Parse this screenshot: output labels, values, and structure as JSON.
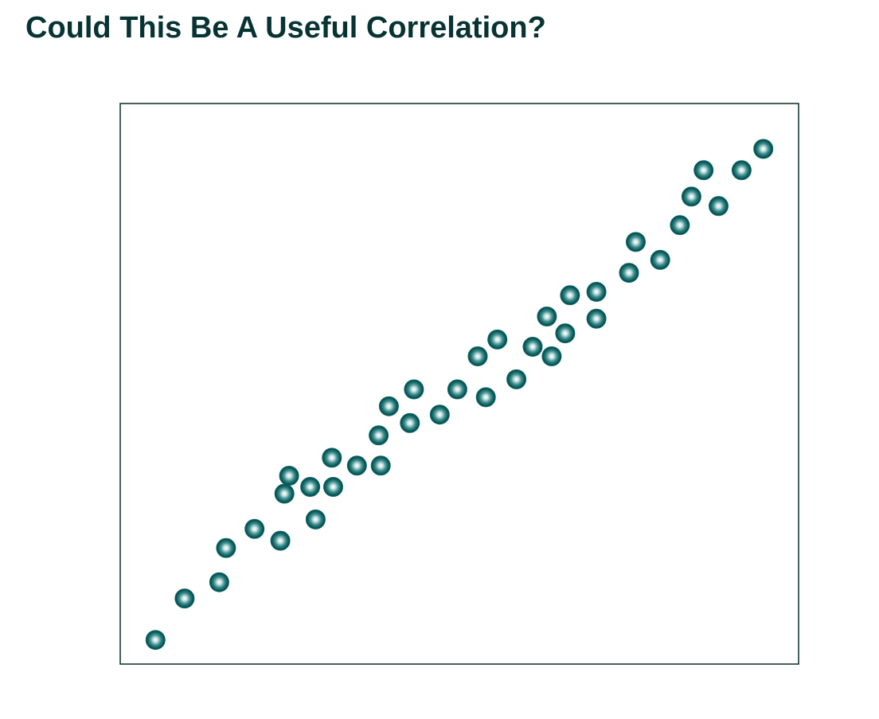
{
  "slide": {
    "title": "Could This Be A Useful Correlation?"
  },
  "chart_data": {
    "type": "scatter",
    "title": "",
    "xlabel": "",
    "ylabel": "",
    "xlim": [
      0,
      100
    ],
    "ylim": [
      0,
      100
    ],
    "grid": false,
    "legend": "none",
    "axes_ticks": "none",
    "marker_color": "#0e6b6b",
    "frame_color": "#0a2a2a",
    "points": [
      {
        "x": 5.2,
        "y": 4.3
      },
      {
        "x": 9.5,
        "y": 11.7
      },
      {
        "x": 14.6,
        "y": 14.6
      },
      {
        "x": 15.6,
        "y": 20.7
      },
      {
        "x": 19.8,
        "y": 24.1
      },
      {
        "x": 23.6,
        "y": 22.0
      },
      {
        "x": 24.2,
        "y": 30.4
      },
      {
        "x": 24.9,
        "y": 33.6
      },
      {
        "x": 28.0,
        "y": 31.6
      },
      {
        "x": 28.8,
        "y": 25.8
      },
      {
        "x": 31.4,
        "y": 31.6
      },
      {
        "x": 31.2,
        "y": 36.8
      },
      {
        "x": 34.9,
        "y": 35.4
      },
      {
        "x": 38.4,
        "y": 35.4
      },
      {
        "x": 38.1,
        "y": 40.8
      },
      {
        "x": 39.6,
        "y": 46.0
      },
      {
        "x": 42.7,
        "y": 43.0
      },
      {
        "x": 43.3,
        "y": 49.0
      },
      {
        "x": 47.1,
        "y": 44.5
      },
      {
        "x": 49.7,
        "y": 49.0
      },
      {
        "x": 53.9,
        "y": 47.6
      },
      {
        "x": 52.7,
        "y": 54.9
      },
      {
        "x": 55.6,
        "y": 57.9
      },
      {
        "x": 58.4,
        "y": 50.8
      },
      {
        "x": 60.8,
        "y": 56.6
      },
      {
        "x": 63.6,
        "y": 54.9
      },
      {
        "x": 62.9,
        "y": 62.0
      },
      {
        "x": 65.6,
        "y": 59.0
      },
      {
        "x": 66.3,
        "y": 65.8
      },
      {
        "x": 70.2,
        "y": 61.6
      },
      {
        "x": 70.2,
        "y": 66.4
      },
      {
        "x": 75.0,
        "y": 69.8
      },
      {
        "x": 76.0,
        "y": 75.3
      },
      {
        "x": 79.6,
        "y": 72.1
      },
      {
        "x": 82.5,
        "y": 78.3
      },
      {
        "x": 84.2,
        "y": 83.4
      },
      {
        "x": 88.2,
        "y": 81.7
      },
      {
        "x": 86.0,
        "y": 88.1
      },
      {
        "x": 91.6,
        "y": 88.1
      },
      {
        "x": 94.8,
        "y": 91.9
      }
    ]
  }
}
